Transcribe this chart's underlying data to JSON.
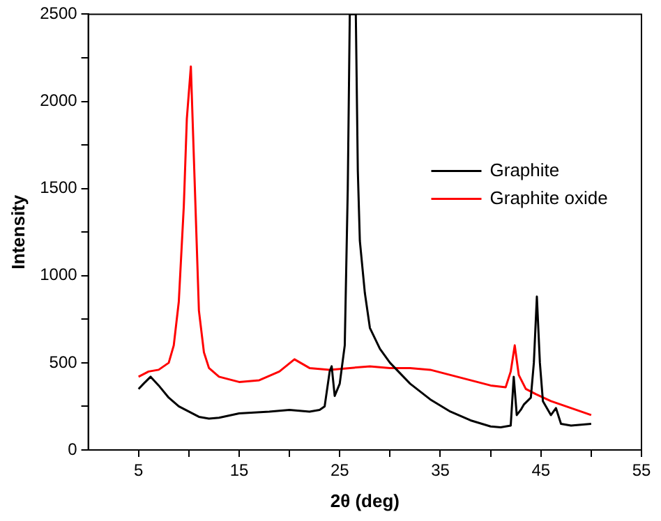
{
  "chart_data": {
    "type": "line",
    "xlabel": "2θ (deg)",
    "ylabel": "Intensity",
    "xlim": [
      0,
      55
    ],
    "xticks": [
      5,
      {
        "value": 10,
        "label": null
      },
      15,
      {
        "value": 20,
        "label": null
      },
      25,
      {
        "value": 30,
        "label": null
      },
      35,
      {
        "value": 40,
        "label": null
      },
      45,
      {
        "value": 50,
        "label": null
      },
      55
    ],
    "ylim": [
      0,
      2500
    ],
    "yticks": [
      0,
      {
        "value": 250,
        "label": null
      },
      500,
      {
        "value": 750,
        "label": null
      },
      1000,
      {
        "value": 1250,
        "label": null
      },
      1500,
      {
        "value": 1750,
        "label": null
      },
      2000,
      {
        "value": 2250,
        "label": null
      },
      2500
    ],
    "grid": false,
    "legend": "right",
    "marker": "none",
    "line_style": "solid",
    "series": [
      {
        "name": "Graphite",
        "color": "#000000",
        "x": [
          5,
          5.5,
          6.2,
          7,
          8,
          9,
          10,
          11,
          12,
          13,
          15,
          18,
          20,
          22,
          23,
          23.5,
          24,
          24.2,
          24.5,
          25,
          25.5,
          25.8,
          26,
          26.6,
          26.8,
          27,
          27.5,
          28,
          29,
          30,
          32,
          34,
          36,
          38,
          40,
          41,
          42,
          42.3,
          42.6,
          43,
          43.3,
          44,
          44.3,
          44.6,
          44.9,
          45.2,
          46,
          46.5,
          47,
          48,
          50
        ],
        "values": [
          350,
          380,
          420,
          370,
          300,
          250,
          220,
          190,
          180,
          185,
          210,
          220,
          230,
          220,
          230,
          250,
          450,
          480,
          310,
          380,
          600,
          1500,
          2500,
          2500,
          1600,
          1200,
          900,
          700,
          580,
          500,
          380,
          290,
          220,
          170,
          135,
          130,
          140,
          420,
          200,
          230,
          260,
          300,
          500,
          880,
          500,
          280,
          200,
          240,
          150,
          140,
          150
        ]
      },
      {
        "name": "Graphite oxide",
        "color": "#ff0000",
        "x": [
          5,
          6,
          7,
          8,
          8.5,
          9,
          9.5,
          9.8,
          10.2,
          10.6,
          11,
          11.5,
          12,
          13,
          15,
          17,
          19,
          20.5,
          22,
          24,
          26,
          28,
          30,
          32,
          34,
          36,
          38,
          40,
          41.5,
          42,
          42.4,
          42.8,
          43.5,
          44.5,
          46,
          48,
          50
        ],
        "values": [
          420,
          450,
          460,
          500,
          600,
          850,
          1400,
          1900,
          2200,
          1500,
          800,
          560,
          470,
          420,
          390,
          400,
          450,
          520,
          470,
          460,
          470,
          480,
          470,
          470,
          460,
          430,
          400,
          370,
          360,
          450,
          600,
          430,
          350,
          320,
          280,
          240,
          200
        ]
      }
    ]
  }
}
